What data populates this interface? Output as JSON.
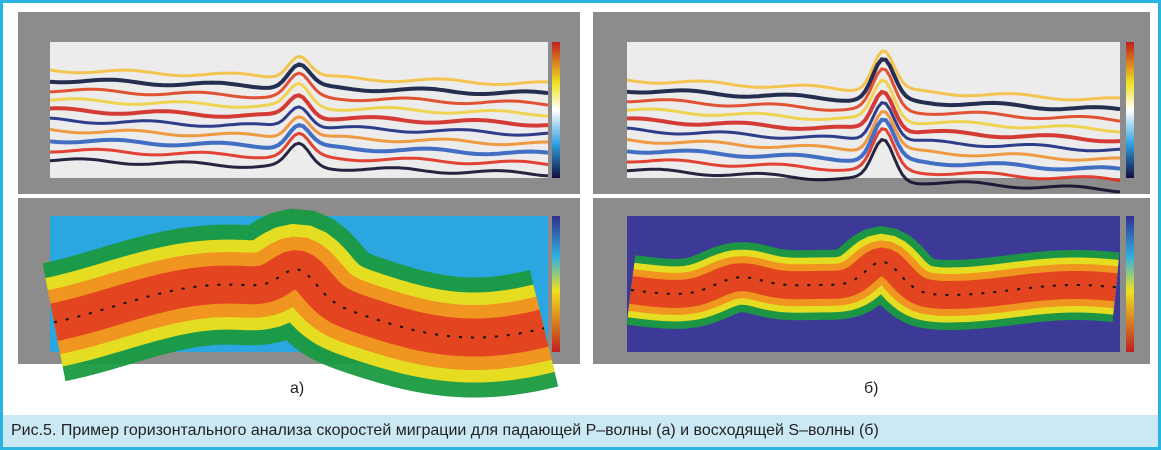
{
  "figures": [
    {
      "label": "а)"
    },
    {
      "label": "б)"
    }
  ],
  "caption": "Рис.5. Пример горизонтального анализа скоростей миграции для падающей  P–волны (а) и восходящей S–волны (б)"
}
